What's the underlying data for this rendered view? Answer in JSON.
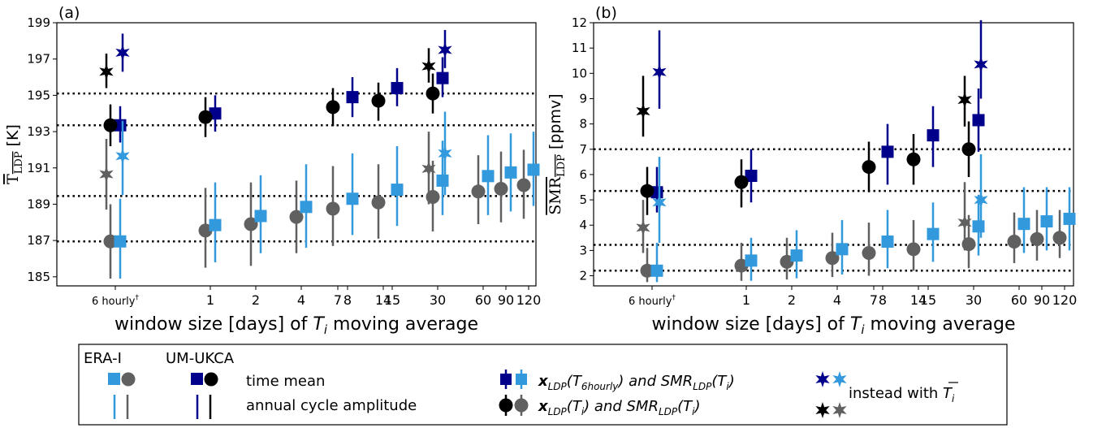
{
  "chart_data": [
    {
      "type": "scatter",
      "panel_label": "(a)",
      "ylabel": "T_LDP [K]",
      "xlabel": "window size [days] of T_i moving average",
      "ylim": [
        184.5,
        199
      ],
      "yticks": [
        185,
        187,
        189,
        191,
        193,
        195,
        197,
        199
      ],
      "xticks": [
        "6 hourly†",
        "1",
        "2",
        "4",
        "7",
        "8",
        "14",
        "15",
        "30",
        "60",
        "90",
        "120"
      ],
      "hlines": [
        195.1,
        193.35,
        189.45,
        186.95
      ],
      "series": [
        {
          "name": "ERA-I time mean",
          "color": "#606060",
          "marker": "circle",
          "points": [
            {
              "x": "6 hourly†",
              "y": 186.95,
              "lo": 184.9,
              "hi": 189.0
            },
            {
              "x": "1",
              "y": 187.55,
              "lo": 185.5,
              "hi": 189.9
            },
            {
              "x": "2",
              "y": 187.9,
              "lo": 185.6,
              "hi": 190.2
            },
            {
              "x": "4",
              "y": 188.3,
              "lo": 186.3,
              "hi": 190.3
            },
            {
              "x": "7",
              "y": 188.75,
              "lo": 186.7,
              "hi": 191.1
            },
            {
              "x": "14",
              "y": 189.1,
              "lo": 187.1,
              "hi": 191.2
            },
            {
              "x": "30",
              "y": 189.4,
              "lo": 187.5,
              "hi": 191.4
            },
            {
              "x": "60",
              "y": 189.7,
              "lo": 187.9,
              "hi": 191.7
            },
            {
              "x": "90",
              "y": 189.85,
              "lo": 188.0,
              "hi": 191.9
            },
            {
              "x": "120",
              "y": 190.05,
              "lo": 188.2,
              "hi": 192.0
            }
          ]
        },
        {
          "name": "UM-UKCA time mean",
          "color": "#3399dd",
          "marker": "square",
          "points": [
            {
              "x": "6 hourly†",
              "y": 186.95,
              "lo": 184.9,
              "hi": 189.3
            },
            {
              "x": "1",
              "y": 187.85,
              "lo": 185.8,
              "hi": 190.2
            },
            {
              "x": "2",
              "y": 188.35,
              "lo": 186.3,
              "hi": 190.6
            },
            {
              "x": "4",
              "y": 188.85,
              "lo": 186.6,
              "hi": 191.2
            },
            {
              "x": "8",
              "y": 189.3,
              "lo": 187.3,
              "hi": 191.8
            },
            {
              "x": "15",
              "y": 189.8,
              "lo": 187.8,
              "hi": 192.2
            },
            {
              "x": "30",
              "y": 190.3,
              "lo": 188.4,
              "hi": 192.5
            },
            {
              "x": "60",
              "y": 190.55,
              "lo": 188.4,
              "hi": 192.8
            },
            {
              "x": "90",
              "y": 190.75,
              "lo": 188.6,
              "hi": 192.9
            },
            {
              "x": "120",
              "y": 190.9,
              "lo": 188.9,
              "hi": 193.0
            }
          ]
        },
        {
          "name": "UM-UKCA x_LDP(T_6hourly)",
          "color": "#00008b",
          "marker": "square",
          "points": [
            {
              "x": "6 hourly†",
              "y": 193.35,
              "lo": 192.4,
              "hi": 194.4
            },
            {
              "x": "1",
              "y": 194.0,
              "lo": 193.0,
              "hi": 195.0
            },
            {
              "x": "8",
              "y": 194.9,
              "lo": 193.8,
              "hi": 196.0
            },
            {
              "x": "15",
              "y": 195.4,
              "lo": 194.4,
              "hi": 196.5
            },
            {
              "x": "30",
              "y": 195.95,
              "lo": 194.9,
              "hi": 197.1
            }
          ]
        },
        {
          "name": "ERA-I x_LDP(T_i)",
          "color": "#000000",
          "marker": "circle",
          "points": [
            {
              "x": "6 hourly†",
              "y": 193.35,
              "lo": 192.2,
              "hi": 194.5
            },
            {
              "x": "1",
              "y": 193.8,
              "lo": 192.7,
              "hi": 194.9
            },
            {
              "x": "7",
              "y": 194.35,
              "lo": 193.3,
              "hi": 195.4
            },
            {
              "x": "14",
              "y": 194.7,
              "lo": 193.6,
              "hi": 195.7
            },
            {
              "x": "30",
              "y": 195.1,
              "lo": 194.0,
              "hi": 196.2
            }
          ]
        },
        {
          "name": "UM-UKCA instead with mean T_i (dark)",
          "color": "#00008b",
          "marker": "star",
          "points": [
            {
              "x": "6 hourly†",
              "y": 197.35,
              "lo": 196.3,
              "hi": 198.4
            },
            {
              "x": "30",
              "y": 197.5,
              "lo": 196.5,
              "hi": 198.6
            }
          ]
        },
        {
          "name": "ERA-I instead with mean T_i (dark)",
          "color": "#000000",
          "marker": "star",
          "points": [
            {
              "x": "6 hourly†",
              "y": 196.3,
              "lo": 195.4,
              "hi": 197.3
            },
            {
              "x": "30",
              "y": 196.6,
              "lo": 195.7,
              "hi": 197.6
            }
          ]
        },
        {
          "name": "UM-UKCA instead with mean T_i (light)",
          "color": "#3399dd",
          "marker": "star",
          "points": [
            {
              "x": "6 hourly†",
              "y": 191.65,
              "lo": 189.5,
              "hi": 193.6
            },
            {
              "x": "30",
              "y": 191.8,
              "lo": 189.5,
              "hi": 194.1
            }
          ]
        },
        {
          "name": "ERA-I instead with mean T_i (light)",
          "color": "#606060",
          "marker": "star",
          "points": [
            {
              "x": "6 hourly†",
              "y": 190.65,
              "lo": 188.7,
              "hi": 192.6
            },
            {
              "x": "30",
              "y": 190.95,
              "lo": 189.0,
              "hi": 193.0
            }
          ]
        }
      ]
    },
    {
      "type": "scatter",
      "panel_label": "(b)",
      "ylabel": "SMR_LDP [ppmv]",
      "xlabel": "window size [days] of T_i moving average",
      "ylim": [
        1.6,
        12
      ],
      "yticks": [
        2,
        3,
        4,
        5,
        6,
        7,
        8,
        9,
        10,
        11,
        12
      ],
      "xticks": [
        "6 hourly†",
        "1",
        "2",
        "4",
        "7",
        "8",
        "14",
        "15",
        "30",
        "60",
        "90",
        "120"
      ],
      "hlines": [
        7.0,
        5.35,
        3.22,
        2.2
      ],
      "series": [
        {
          "name": "ERA-I time mean",
          "color": "#606060",
          "marker": "circle",
          "points": [
            {
              "x": "6 hourly†",
              "y": 2.2,
              "lo": 1.75,
              "hi": 3.1
            },
            {
              "x": "1",
              "y": 2.4,
              "lo": 1.8,
              "hi": 3.3
            },
            {
              "x": "2",
              "y": 2.55,
              "lo": 1.85,
              "hi": 3.5
            },
            {
              "x": "4",
              "y": 2.7,
              "lo": 1.95,
              "hi": 3.7
            },
            {
              "x": "7",
              "y": 2.9,
              "lo": 2.0,
              "hi": 4.1
            },
            {
              "x": "14",
              "y": 3.05,
              "lo": 2.2,
              "hi": 4.2
            },
            {
              "x": "30",
              "y": 3.25,
              "lo": 2.3,
              "hi": 4.4
            },
            {
              "x": "60",
              "y": 3.35,
              "lo": 2.5,
              "hi": 4.5
            },
            {
              "x": "90",
              "y": 3.45,
              "lo": 2.6,
              "hi": 4.6
            },
            {
              "x": "120",
              "y": 3.5,
              "lo": 2.7,
              "hi": 4.6
            }
          ]
        },
        {
          "name": "UM-UKCA time mean",
          "color": "#3399dd",
          "marker": "square",
          "points": [
            {
              "x": "6 hourly†",
              "y": 2.2,
              "lo": 1.75,
              "hi": 3.3
            },
            {
              "x": "1",
              "y": 2.6,
              "lo": 1.8,
              "hi": 3.5
            },
            {
              "x": "2",
              "y": 2.8,
              "lo": 1.9,
              "hi": 3.8
            },
            {
              "x": "4",
              "y": 3.05,
              "lo": 2.05,
              "hi": 4.2
            },
            {
              "x": "8",
              "y": 3.35,
              "lo": 2.3,
              "hi": 4.6
            },
            {
              "x": "15",
              "y": 3.65,
              "lo": 2.55,
              "hi": 4.9
            },
            {
              "x": "30",
              "y": 3.95,
              "lo": 2.8,
              "hi": 5.2
            },
            {
              "x": "60",
              "y": 4.05,
              "lo": 2.9,
              "hi": 5.5
            },
            {
              "x": "90",
              "y": 4.15,
              "lo": 3.0,
              "hi": 5.5
            },
            {
              "x": "120",
              "y": 4.25,
              "lo": 3.0,
              "hi": 5.5
            }
          ]
        },
        {
          "name": "UM-UKCA x_LDP(T_6hourly)",
          "color": "#00008b",
          "marker": "square",
          "points": [
            {
              "x": "6 hourly†",
              "y": 5.3,
              "lo": 4.5,
              "hi": 6.3
            },
            {
              "x": "1",
              "y": 5.95,
              "lo": 4.9,
              "hi": 7.0
            },
            {
              "x": "8",
              "y": 6.9,
              "lo": 5.6,
              "hi": 8.0
            },
            {
              "x": "15",
              "y": 7.55,
              "lo": 6.3,
              "hi": 8.7
            },
            {
              "x": "30",
              "y": 8.15,
              "lo": 6.9,
              "hi": 9.4
            }
          ]
        },
        {
          "name": "ERA-I x_LDP(T_i)",
          "color": "#000000",
          "marker": "circle",
          "points": [
            {
              "x": "6 hourly†",
              "y": 5.35,
              "lo": 4.4,
              "hi": 6.3
            },
            {
              "x": "1",
              "y": 5.7,
              "lo": 4.7,
              "hi": 6.6
            },
            {
              "x": "7",
              "y": 6.3,
              "lo": 5.3,
              "hi": 7.3
            },
            {
              "x": "14",
              "y": 6.6,
              "lo": 5.6,
              "hi": 7.6
            },
            {
              "x": "30",
              "y": 7.0,
              "lo": 5.9,
              "hi": 8.1
            }
          ]
        },
        {
          "name": "UM-UKCA instead with mean T_i (dark)",
          "color": "#00008b",
          "marker": "star",
          "points": [
            {
              "x": "6 hourly†",
              "y": 10.05,
              "lo": 8.6,
              "hi": 11.7
            },
            {
              "x": "30",
              "y": 10.35,
              "lo": 9.0,
              "hi": 12.1
            }
          ]
        },
        {
          "name": "ERA-I instead with mean T_i (dark)",
          "color": "#000000",
          "marker": "star",
          "points": [
            {
              "x": "6 hourly†",
              "y": 8.5,
              "lo": 7.5,
              "hi": 9.9
            },
            {
              "x": "30",
              "y": 8.95,
              "lo": 7.9,
              "hi": 9.9
            }
          ]
        },
        {
          "name": "UM-UKCA instead with mean T_i (light)",
          "color": "#3399dd",
          "marker": "star",
          "points": [
            {
              "x": "6 hourly†",
              "y": 4.9,
              "lo": 3.3,
              "hi": 6.7
            },
            {
              "x": "30",
              "y": 5.0,
              "lo": 3.5,
              "hi": 6.8
            }
          ]
        },
        {
          "name": "ERA-I instead with mean T_i (light)",
          "color": "#606060",
          "marker": "star",
          "points": [
            {
              "x": "6 hourly†",
              "y": 3.9,
              "lo": 2.9,
              "hi": 5.0
            },
            {
              "x": "30",
              "y": 4.1,
              "lo": 3.0,
              "hi": 5.7
            }
          ]
        }
      ]
    }
  ],
  "legend": {
    "col_era": "ERA-I",
    "col_um": "UM-UKCA",
    "time_mean": "time mean",
    "annual_cycle": "annual cycle amplitude",
    "x_6hourly_pre": "x",
    "x_6hourly_mid": "LDP",
    "x_6hourly_arg": "(T",
    "x_6hourly_sub": "6hourly",
    "x_6hourly_and": ") and SMR",
    "x_6hourly_sub2": "LDP",
    "x_6hourly_end": "(T",
    "x_6hourly_sub3": "i",
    "x_6hourly_close": ")",
    "x_ti_pre": "x",
    "x_ti_sub": "LDP",
    "x_ti_arg": "(T",
    "x_ti_sub2": "i",
    "x_ti_and": ") and SMR",
    "x_ti_sub3": "LDP",
    "x_ti_end": "(T",
    "x_ti_sub4": "i",
    "x_ti_close": ")",
    "instead_text": "instead with ",
    "instead_T": "T",
    "instead_sub": "i",
    "colors": {
      "era_light": "#606060",
      "um_light": "#3399dd",
      "um_dark": "#00008b",
      "era_dark": "#000000"
    }
  }
}
